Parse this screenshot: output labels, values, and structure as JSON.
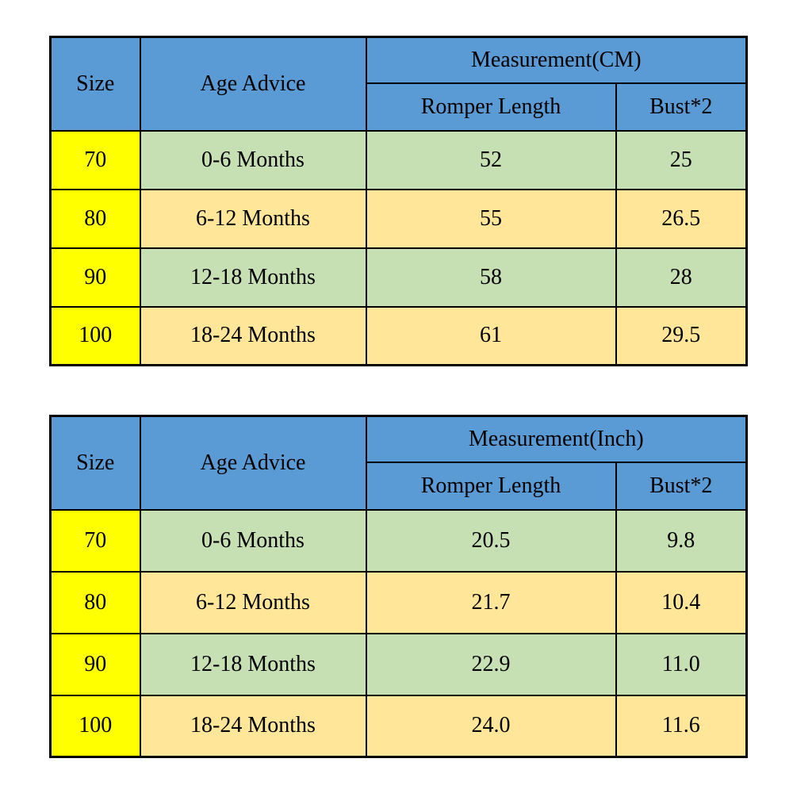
{
  "colors": {
    "header_blue": "#5b9bd5",
    "size_yellow": "#ffff00",
    "row_green": "#c6e0b4",
    "row_tan": "#ffe699",
    "border": "#000000",
    "text": "#000000",
    "background": "#ffffff"
  },
  "chart_data": [
    {
      "type": "table",
      "name": "measurement-cm",
      "headers": {
        "size": "Size",
        "age_advice": "Age Advice",
        "measurement": "Measurement(CM)",
        "romper_length": "Romper Length",
        "bust": "Bust*2"
      },
      "rows": [
        {
          "size": "70",
          "age": "0-6 Months",
          "romper_length": "52",
          "bust": "25"
        },
        {
          "size": "80",
          "age": "6-12 Months",
          "romper_length": "55",
          "bust": "26.5"
        },
        {
          "size": "90",
          "age": "12-18 Months",
          "romper_length": "58",
          "bust": "28"
        },
        {
          "size": "100",
          "age": "18-24 Months",
          "romper_length": "61",
          "bust": "29.5"
        }
      ]
    },
    {
      "type": "table",
      "name": "measurement-inch",
      "headers": {
        "size": "Size",
        "age_advice": "Age Advice",
        "measurement": "Measurement(Inch)",
        "romper_length": "Romper Length",
        "bust": "Bust*2"
      },
      "rows": [
        {
          "size": "70",
          "age": "0-6 Months",
          "romper_length": "20.5",
          "bust": "9.8"
        },
        {
          "size": "80",
          "age": "6-12 Months",
          "romper_length": "21.7",
          "bust": "10.4"
        },
        {
          "size": "90",
          "age": "12-18 Months",
          "romper_length": "22.9",
          "bust": "11.0"
        },
        {
          "size": "100",
          "age": "18-24 Months",
          "romper_length": "24.0",
          "bust": "11.6"
        }
      ]
    }
  ]
}
